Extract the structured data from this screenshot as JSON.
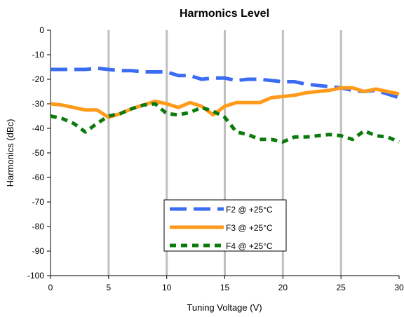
{
  "chart_data": {
    "type": "line",
    "title": "Harmonics Level",
    "xlabel": "Tuning Voltage (V)",
    "ylabel": "Harmonics (dBc)",
    "xlim": [
      0,
      30
    ],
    "ylim": [
      -100,
      0
    ],
    "xticks": [
      0,
      5,
      10,
      15,
      20,
      25,
      30
    ],
    "yticks": [
      0,
      -10,
      -20,
      -30,
      -40,
      -50,
      -60,
      -70,
      -80,
      -90,
      -100
    ],
    "grid": "vertical",
    "legend_position": "lower-center",
    "series": [
      {
        "name": "F2 @ +25°C",
        "color": "#3a6cf4",
        "dash": "dashed",
        "x": [
          0,
          1,
          2,
          3,
          4,
          5,
          6,
          7,
          8,
          9,
          10,
          11,
          12,
          13,
          14,
          15,
          16,
          17,
          18,
          19,
          20,
          21,
          22,
          23,
          24,
          25,
          26,
          27,
          28,
          29,
          30
        ],
        "y": [
          -16,
          -16,
          -16,
          -16,
          -15.5,
          -16,
          -16.5,
          -16.5,
          -17,
          -17,
          -17,
          -18.5,
          -18.5,
          -20,
          -19.5,
          -19.5,
          -20.5,
          -20,
          -20,
          -20.5,
          -21,
          -21,
          -22,
          -22.5,
          -23,
          -23.5,
          -24.5,
          -25,
          -24.5,
          -26,
          -27.5
        ]
      },
      {
        "name": "F3 @ +25°C",
        "color": "#ff9a1a",
        "dash": "solid",
        "x": [
          0,
          1,
          2,
          3,
          4,
          5,
          6,
          7,
          8,
          9,
          10,
          11,
          12,
          13,
          14,
          15,
          16,
          17,
          18,
          19,
          20,
          21,
          22,
          23,
          24,
          25,
          26,
          27,
          28,
          29,
          30
        ],
        "y": [
          -30,
          -30.5,
          -31.5,
          -32.5,
          -32.5,
          -35.5,
          -34,
          -32,
          -30.5,
          -29,
          -30,
          -31.5,
          -29.5,
          -31,
          -34.5,
          -31,
          -29.5,
          -29.5,
          -29.5,
          -27.5,
          -27,
          -26.5,
          -25.5,
          -25,
          -24.5,
          -23.5,
          -23.5,
          -25,
          -24,
          -25,
          -26
        ]
      },
      {
        "name": "F4 @ +25°C",
        "color": "#0a7a0a",
        "dash": "dotted",
        "x": [
          0,
          1,
          2,
          3,
          4,
          5,
          6,
          7,
          8,
          9,
          10,
          11,
          12,
          13,
          14,
          15,
          16,
          17,
          18,
          19,
          20,
          21,
          22,
          23,
          24,
          25,
          26,
          27,
          28,
          29,
          30
        ],
        "y": [
          -35,
          -36,
          -38,
          -41.5,
          -38,
          -35,
          -34,
          -32,
          -30.5,
          -30,
          -34,
          -34.5,
          -33.5,
          -31.5,
          -33,
          -35.5,
          -41.5,
          -42.5,
          -44.5,
          -44.5,
          -45.5,
          -43.5,
          -43.5,
          -43,
          -42.5,
          -43,
          -44.5,
          -41,
          -43,
          -43.5,
          -45.5
        ]
      }
    ]
  }
}
